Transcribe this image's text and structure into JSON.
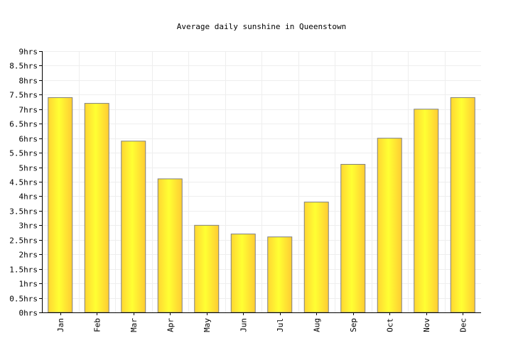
{
  "chart_data": {
    "type": "bar",
    "title": "Average daily sunshine in Queenstown",
    "xlabel": "",
    "ylabel": "",
    "categories": [
      "Jan",
      "Feb",
      "Mar",
      "Apr",
      "May",
      "Jun",
      "Jul",
      "Aug",
      "Sep",
      "Oct",
      "Nov",
      "Dec"
    ],
    "values": [
      7.4,
      7.2,
      5.9,
      4.6,
      3.0,
      2.7,
      2.6,
      3.8,
      5.1,
      6.0,
      7.0,
      7.4
    ],
    "ylim": [
      0,
      9
    ],
    "yticks": [
      "0hrs",
      "0.5hrs",
      "1hrs",
      "1.5hrs",
      "2hrs",
      "2.5hrs",
      "3hrs",
      "3.5hrs",
      "4hrs",
      "4.5hrs",
      "5hrs",
      "5.5hrs",
      "6hrs",
      "6.5hrs",
      "7hrs",
      "7.5hrs",
      "8hrs",
      "8.5hrs",
      "9hrs"
    ],
    "grid": true,
    "legend": "none",
    "colors": {
      "bar_start": "#ffd633",
      "bar_mid": "#ffff33",
      "bar_end": "#ffcc33",
      "bar_stroke": "#808080",
      "grid": "#eeeeee",
      "axis": "#000000"
    }
  }
}
